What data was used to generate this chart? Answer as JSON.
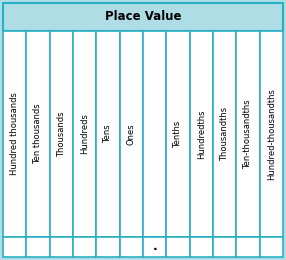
{
  "title": "Place Value",
  "columns": [
    "Hundred thousands",
    "Ten thousands",
    "Thousands",
    "Hundreds",
    "Tens",
    "Ones",
    "",
    "Tenths",
    "Hundredths",
    "Thousandths",
    "Ten-thousandths",
    "Hundred-thousandths"
  ],
  "decimal_col_index": 6,
  "decimal_symbol": ".",
  "header_bg": "#aedde6",
  "cell_bg": "#ffffff",
  "border_color": "#2ab0c5",
  "title_fontsize": 8.5,
  "cell_fontsize": 6.0,
  "title_color": "#000000",
  "cell_text_color": "#000000",
  "fig_bg": "#aedde6"
}
